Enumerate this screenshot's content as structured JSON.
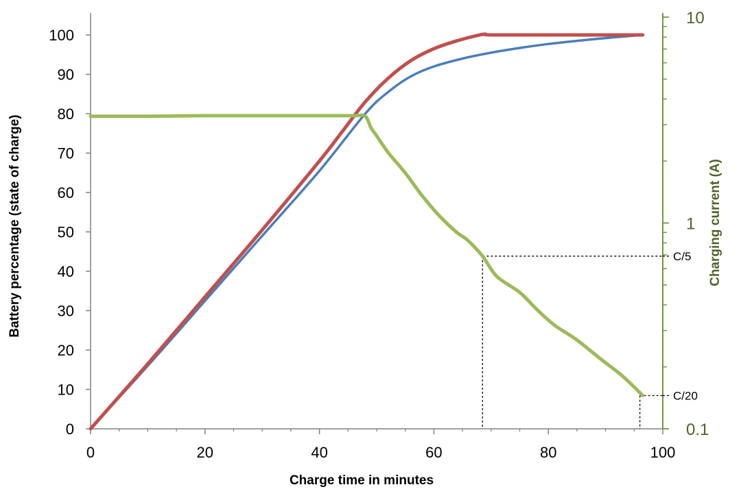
{
  "chart_data": {
    "type": "line",
    "title": "",
    "xlabel": "Charge time in minutes",
    "ylabel": "Battery percentage (state of charge)",
    "y2label": "Charging current (A)",
    "xlim": [
      0,
      100
    ],
    "ylim": [
      0,
      100
    ],
    "y2lim": [
      0.1,
      10
    ],
    "y2scale": "log",
    "x_ticks": [
      "0",
      "20",
      "40",
      "60",
      "80",
      "100"
    ],
    "y_ticks": [
      "0",
      "10",
      "20",
      "30",
      "40",
      "50",
      "60",
      "70",
      "80",
      "90",
      "100"
    ],
    "y2_ticks": [
      "0.1",
      "1",
      "10"
    ],
    "grid": false,
    "colors": {
      "soc_blue": "#4a7ebb",
      "soc_red": "#c0504d",
      "current": "#9bbb59",
      "right_axis": "#4f6228"
    },
    "series": [
      {
        "name": "State of charge (blue)",
        "axis": "left",
        "x": [
          0,
          10,
          20,
          30,
          40,
          48,
          52,
          56,
          60,
          65,
          70,
          75,
          80,
          85,
          90,
          96.5
        ],
        "y": [
          0,
          16,
          32.5,
          49,
          65.5,
          80,
          85.5,
          89.5,
          92,
          94,
          95.5,
          96.7,
          97.7,
          98.5,
          99.2,
          100
        ]
      },
      {
        "name": "State of charge (red)",
        "axis": "left",
        "x": [
          0,
          10,
          20,
          30,
          40,
          44,
          48,
          52,
          56,
          60,
          64,
          68,
          69,
          70,
          80,
          90,
          96.5
        ],
        "y": [
          0,
          16.5,
          33.5,
          50.5,
          68,
          75.5,
          83,
          89,
          93.5,
          96.5,
          98.5,
          100,
          100.2,
          100,
          100,
          100,
          100
        ]
      },
      {
        "name": "Charging current",
        "axis": "right",
        "x": [
          0,
          10,
          20,
          30,
          40,
          46,
          48,
          49,
          50,
          52,
          55,
          58,
          61,
          64,
          66,
          68.5,
          71,
          75,
          78,
          81,
          85,
          89,
          93,
          96.5
        ],
        "y": [
          3.3,
          3.3,
          3.32,
          3.32,
          3.32,
          3.32,
          3.3,
          2.9,
          2.65,
          2.2,
          1.75,
          1.35,
          1.08,
          0.9,
          0.82,
          0.69,
          0.55,
          0.46,
          0.38,
          0.32,
          0.27,
          0.22,
          0.18,
          0.145
        ]
      }
    ],
    "annotations": [
      {
        "label": "C/5",
        "x": 68.5,
        "y2": 0.69
      },
      {
        "label": "C/20",
        "x": 96,
        "y2": 0.145
      }
    ]
  }
}
